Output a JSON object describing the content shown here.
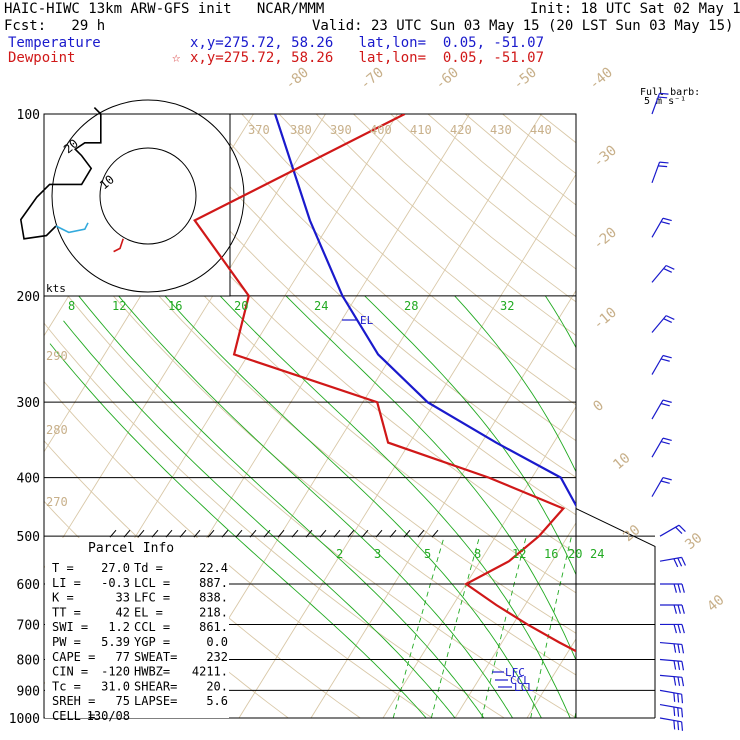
{
  "header": {
    "title": "HAIC-HIWC 13km ARW-GFS init   NCAR/MMM",
    "init": "Init: 18 UTC Sat 02 May 15",
    "fcst": "Fcst:   29 h",
    "valid": "Valid: 23 UTC Sun 03 May 15 (20 LST Sun 03 May 15)",
    "temp_label": "Temperature",
    "temp_info": "x,y=275.72, 58.26   lat,lon=  0.05, -51.07",
    "dew_label": "Dewpoint",
    "dew_info": "x,y=275.72, 58.26   lat,lon=  0.05, -51.07",
    "dew_marker": "☆"
  },
  "barb_legend": [
    "Full barb:",
    "5 m s⁻¹"
  ],
  "hodograph": {
    "units_label": "kts",
    "ring_labels": [
      "10",
      "20"
    ]
  },
  "parcel": {
    "title": "Parcel Info",
    "rows": [
      {
        "k1": "T   =",
        "v1": "27.0",
        "k2": "Td =",
        "v2": "22.4"
      },
      {
        "k1": "LI  =",
        "v1": "-0.3",
        "k2": "LCL =",
        "v2": "887."
      },
      {
        "k1": "K   =",
        "v1": "33",
        "k2": "LFC =",
        "v2": "838."
      },
      {
        "k1": "TT  =",
        "v1": "42",
        "k2": "EL  =",
        "v2": "218."
      },
      {
        "k1": "SWI =",
        "v1": "1.2",
        "k2": "CCL =",
        "v2": "861."
      },
      {
        "k1": "PW  =",
        "v1": "5.39",
        "k2": "YGP =",
        "v2": "0.0"
      },
      {
        "k1": "CAPE =",
        "v1": "77",
        "k2": "SWEAT=",
        "v2": "232"
      },
      {
        "k1": "CIN =",
        "v1": "-120",
        "k2": "HWBZ=",
        "v2": "4211."
      },
      {
        "k1": "Tc  =",
        "v1": "31.0",
        "k2": "SHEAR=",
        "v2": "20."
      },
      {
        "k1": "SREH =",
        "v1": "75",
        "k2": "LAPSE=",
        "v2": "5.6"
      },
      {
        "k1": "CELL =",
        "v1": "130/08",
        "k2": "",
        "v2": ""
      }
    ]
  },
  "chart_data": {
    "type": "line",
    "title": "",
    "pressure_levels": [
      100,
      200,
      300,
      400,
      500,
      600,
      700,
      800,
      900,
      1000
    ],
    "pressure_labels": [
      "100",
      "200",
      "300",
      "400",
      "500",
      "600",
      "700",
      "800",
      "900",
      "1000"
    ],
    "temperature_labels": [
      "-80",
      "-70",
      "-60",
      "-50",
      "-40",
      "-30",
      "-20",
      "-10",
      "0",
      "10",
      "20",
      "30",
      "40"
    ],
    "theta_labels": [
      "370",
      "380",
      "390",
      "400",
      "410",
      "420",
      "430",
      "440"
    ],
    "theta_low_labels": [
      "290",
      "280",
      "270"
    ],
    "mixing_ratio_upper_labels": [
      "8",
      "12",
      "16",
      "20",
      "24",
      "28",
      "32"
    ],
    "mixing_ratio_lower_labels": [
      "2",
      "3",
      "5",
      "8",
      "12",
      "16",
      "20",
      "24"
    ],
    "level_markers": {
      "EL": "EL",
      "LFC": "LFC",
      "CCL": "CCL",
      "LCL": "LCL"
    },
    "series": [
      {
        "name": "Temperature",
        "color": "#1a1acc",
        "points": [
          [
            100,
            -77
          ],
          [
            150,
            -63
          ],
          [
            200,
            -52
          ],
          [
            250,
            -42
          ],
          [
            300,
            -31
          ],
          [
            350,
            -18
          ],
          [
            400,
            -6
          ],
          [
            450,
            -1
          ],
          [
            500,
            6
          ],
          [
            550,
            9
          ],
          [
            600,
            12
          ],
          [
            650,
            14
          ],
          [
            700,
            16
          ],
          [
            750,
            18
          ],
          [
            800,
            20
          ],
          [
            850,
            21
          ],
          [
            900,
            24
          ],
          [
            950,
            26
          ],
          [
            1000,
            27
          ]
        ]
      },
      {
        "name": "Dewpoint",
        "color": "#d01818",
        "points": [
          [
            100,
            -59
          ],
          [
            150,
            -79
          ],
          [
            200,
            -65
          ],
          [
            250,
            -62
          ],
          [
            300,
            -38
          ],
          [
            350,
            -33
          ],
          [
            400,
            -16
          ],
          [
            450,
            -3
          ],
          [
            500,
            -4
          ],
          [
            550,
            -6
          ],
          [
            600,
            -10
          ],
          [
            650,
            -4
          ],
          [
            700,
            2
          ],
          [
            750,
            8
          ],
          [
            800,
            14
          ],
          [
            850,
            16
          ],
          [
            900,
            18
          ],
          [
            950,
            20
          ],
          [
            1000,
            22
          ]
        ]
      }
    ],
    "hodograph_points": [
      [
        0,
        0
      ],
      [
        -3,
        -3
      ],
      [
        -10,
        -4
      ],
      [
        -11,
        2
      ],
      [
        -6,
        9
      ],
      [
        -2,
        13
      ],
      [
        8,
        13
      ],
      [
        11,
        18
      ],
      [
        8,
        22
      ],
      [
        6,
        24
      ],
      [
        9,
        26
      ],
      [
        14,
        26
      ],
      [
        14,
        35
      ],
      [
        12,
        37
      ]
    ],
    "hodograph_low_points": [
      [
        0,
        0
      ],
      [
        4,
        -2
      ],
      [
        9,
        -1
      ],
      [
        10,
        1
      ]
    ],
    "hodograph_red": [
      [
        21,
        -4
      ],
      [
        21,
        -2
      ],
      [
        24,
        -2
      ],
      [
        27,
        -1
      ]
    ],
    "red_hodo_extra": [
      [
        21,
        -4
      ],
      [
        20,
        -7
      ],
      [
        18,
        -8
      ]
    ],
    "wind_barbs": [
      {
        "p": 100,
        "dir": 20,
        "spd": 10
      },
      {
        "p": 130,
        "dir": 20,
        "spd": 10
      },
      {
        "p": 160,
        "dir": 30,
        "spd": 10
      },
      {
        "p": 190,
        "dir": 40,
        "spd": 10
      },
      {
        "p": 230,
        "dir": 40,
        "spd": 10
      },
      {
        "p": 270,
        "dir": 30,
        "spd": 10
      },
      {
        "p": 320,
        "dir": 30,
        "spd": 10
      },
      {
        "p": 370,
        "dir": 30,
        "spd": 10
      },
      {
        "p": 430,
        "dir": 30,
        "spd": 10
      },
      {
        "p": 500,
        "dir": 60,
        "spd": 10
      },
      {
        "p": 550,
        "dir": 80,
        "spd": 15
      },
      {
        "p": 600,
        "dir": 90,
        "spd": 15
      },
      {
        "p": 650,
        "dir": 90,
        "spd": 15
      },
      {
        "p": 700,
        "dir": 90,
        "spd": 15
      },
      {
        "p": 750,
        "dir": 95,
        "spd": 15
      },
      {
        "p": 800,
        "dir": 95,
        "spd": 15
      },
      {
        "p": 850,
        "dir": 95,
        "spd": 15
      },
      {
        "p": 900,
        "dir": 100,
        "spd": 15
      },
      {
        "p": 950,
        "dir": 100,
        "spd": 15
      },
      {
        "p": 1000,
        "dir": 100,
        "spd": 15
      }
    ]
  }
}
